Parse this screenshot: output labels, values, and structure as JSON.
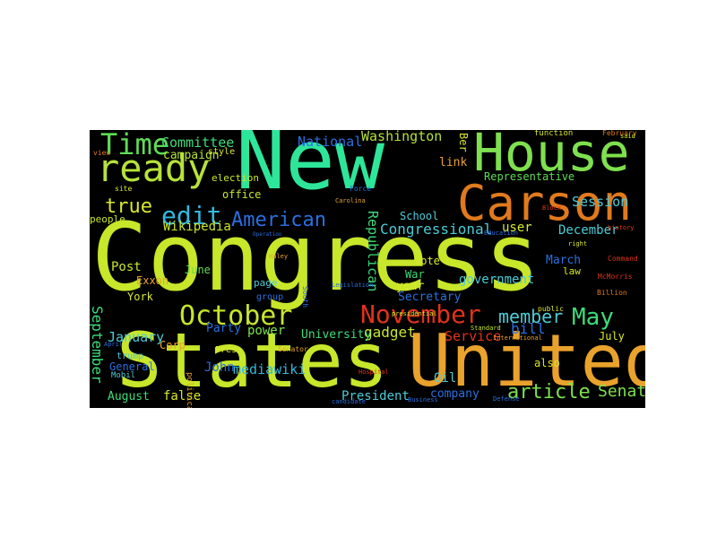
{
  "cloud": {
    "background": "#000000",
    "words": [
      {
        "text": "Congress",
        "color": "#c8e62a"
      },
      {
        "text": "New",
        "color": "#2ee69a"
      },
      {
        "text": "States",
        "color": "#c8e62a"
      },
      {
        "text": "United",
        "color": "#e9a22c"
      },
      {
        "text": "House",
        "color": "#7ee04e"
      },
      {
        "text": "Carson",
        "color": "#e07a1c"
      },
      {
        "text": "ready",
        "color": "#b7e23a"
      },
      {
        "text": "October",
        "color": "#c8e62a"
      },
      {
        "text": "November",
        "color": "#e0321a"
      },
      {
        "text": "Time",
        "color": "#5fdc55"
      },
      {
        "text": "edit",
        "color": "#34b8e0"
      },
      {
        "text": "American",
        "color": "#2a6fe0"
      },
      {
        "text": "May",
        "color": "#3ddc7a"
      },
      {
        "text": "article",
        "color": "#7ee04e"
      },
      {
        "text": "Senate",
        "color": "#7ee04e"
      },
      {
        "text": "member",
        "color": "#4ecbd6"
      },
      {
        "text": "September",
        "color": "#3ddc7a"
      },
      {
        "text": "Washington",
        "color": "#b7e23a"
      },
      {
        "text": "Committee",
        "color": "#3ddc7a"
      },
      {
        "text": "National",
        "color": "#2a6fe0"
      },
      {
        "text": "Representative",
        "color": "#5fdc55"
      },
      {
        "text": "Session",
        "color": "#4ecbd6"
      },
      {
        "text": "true",
        "color": "#d8e82a"
      },
      {
        "text": "Congressional",
        "color": "#4ecbd6"
      },
      {
        "text": "Wikipedia",
        "color": "#c8e62a"
      },
      {
        "text": "January",
        "color": "#4ecbd6"
      },
      {
        "text": "December",
        "color": "#4ecbd6"
      },
      {
        "text": "mediawiki",
        "color": "#34b8e0"
      },
      {
        "text": "President",
        "color": "#4ecbd6"
      },
      {
        "text": "Republican",
        "color": "#3ddc7a"
      },
      {
        "text": "government",
        "color": "#4ecbd6"
      },
      {
        "text": "campaign",
        "color": "#b7e23a"
      },
      {
        "text": "Post",
        "color": "#c8e62a"
      },
      {
        "text": "York",
        "color": "#d8e82a"
      },
      {
        "text": "June",
        "color": "#5fdc55"
      },
      {
        "text": "March",
        "color": "#2a6fe0"
      },
      {
        "text": "bill",
        "color": "#2a6fe0"
      },
      {
        "text": "link",
        "color": "#e9a22c"
      },
      {
        "text": "user",
        "color": "#d8e82a"
      },
      {
        "text": "gadget",
        "color": "#c8e62a"
      },
      {
        "text": "power",
        "color": "#7ee04e"
      },
      {
        "text": "Party",
        "color": "#2a6fe0"
      },
      {
        "text": "company",
        "color": "#2a6fe0"
      },
      {
        "text": "false",
        "color": "#d8e82a"
      },
      {
        "text": "August",
        "color": "#3ddc7a"
      },
      {
        "text": "John",
        "color": "#2a6fe0"
      },
      {
        "text": "General",
        "color": "#2a6fe0"
      },
      {
        "text": "Service",
        "color": "#e0321a"
      },
      {
        "text": "University",
        "color": "#3ddc7a"
      },
      {
        "text": "Secretary",
        "color": "#2a6fe0"
      },
      {
        "text": "School",
        "color": "#4ecbd6"
      },
      {
        "text": "vote",
        "color": "#d8e82a"
      },
      {
        "text": "War",
        "color": "#3ddc7a"
      },
      {
        "text": "year",
        "color": "#d8e82a"
      },
      {
        "text": "July",
        "color": "#d8e82a"
      },
      {
        "text": "also",
        "color": "#d8e82a"
      },
      {
        "text": "Oil",
        "color": "#4ecbd6"
      },
      {
        "text": "Exxon",
        "color": "#e9a22c"
      },
      {
        "text": "Corp",
        "color": "#e9a22c"
      },
      {
        "text": "office",
        "color": "#c8e62a"
      },
      {
        "text": "election",
        "color": "#c8e62a"
      },
      {
        "text": "people",
        "color": "#c8e62a"
      },
      {
        "text": "page",
        "color": "#4ecbd6"
      },
      {
        "text": "group",
        "color": "#2a6fe0"
      },
      {
        "text": "law",
        "color": "#d8e82a"
      },
      {
        "text": "Ber",
        "color": "#d8e82a"
      },
      {
        "text": "style",
        "color": "#d8e82a"
      },
      {
        "text": "Press",
        "color": "#d8e82a"
      },
      {
        "text": "political",
        "color": "#e9a22c"
      },
      {
        "text": "function",
        "color": "#d8e82a"
      },
      {
        "text": "February",
        "color": "#e07a1c"
      },
      {
        "text": "Mobil",
        "color": "#4ecbd6"
      },
      {
        "text": "trump",
        "color": "#4ecbd6"
      },
      {
        "text": "Force",
        "color": "#2a6fe0"
      },
      {
        "text": "Carolina",
        "color": "#e9a22c"
      },
      {
        "text": "Billion",
        "color": "#e07a1c"
      },
      {
        "text": "Command",
        "color": "#e0321a"
      },
      {
        "text": "Hospital",
        "color": "#e0321a"
      },
      {
        "text": "Defense",
        "color": "#2a6fe0"
      },
      {
        "text": "Business",
        "color": "#2a6fe0"
      },
      {
        "text": "Standard",
        "color": "#c8e62a"
      },
      {
        "text": "International",
        "color": "#e9a22c"
      },
      {
        "text": "McMorris",
        "color": "#e0321a"
      },
      {
        "text": "Senator",
        "color": "#e9a22c"
      },
      {
        "text": "South",
        "color": "#2a6fe0"
      },
      {
        "text": "history",
        "color": "#e0321a"
      },
      {
        "text": "candidate",
        "color": "#2a6fe0"
      },
      {
        "text": "Block",
        "color": "#e0321a"
      },
      {
        "text": "Education",
        "color": "#2a6fe0"
      },
      {
        "text": "presidential",
        "color": "#d8e82a"
      },
      {
        "text": "April",
        "color": "#2a6fe0"
      },
      {
        "text": "Haley",
        "color": "#e9a22c"
      },
      {
        "text": "site",
        "color": "#d8e82a"
      },
      {
        "text": "view",
        "color": "#e07a1c"
      },
      {
        "text": "public",
        "color": "#d8e82a"
      },
      {
        "text": "said",
        "color": "#d8e82a"
      },
      {
        "text": "right",
        "color": "#d8e82a"
      },
      {
        "text": "Operation",
        "color": "#2a6fe0"
      },
      {
        "text": "Legislation",
        "color": "#2a6fe0"
      }
    ]
  }
}
